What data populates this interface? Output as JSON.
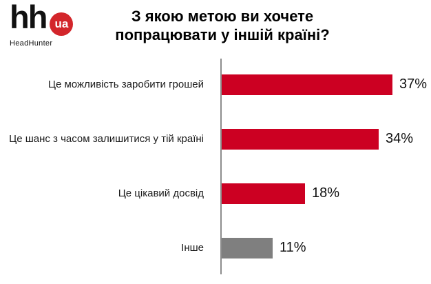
{
  "logo": {
    "hh": "hh",
    "ua": "ua",
    "subtitle": "HeadHunter"
  },
  "title": {
    "line1": "З якою метою ви хочете",
    "line2": "попрацювати у іншій країні?"
  },
  "chart_data": {
    "type": "bar",
    "orientation": "horizontal",
    "title": "З якою метою ви хочете попрацювати у іншій країні?",
    "categories": [
      "Це можливість заробити грошей",
      "Це шанс з часом залишитися у тій країні",
      "Це цікавий досвід",
      "Інше"
    ],
    "values": [
      37,
      34,
      18,
      11
    ],
    "value_labels": [
      "37%",
      "34%",
      "18%",
      "11%"
    ],
    "bar_colors": [
      "#cc0022",
      "#cc0022",
      "#cc0022",
      "#7f7f7f"
    ],
    "xlim": [
      0,
      40
    ],
    "grid": false,
    "legend": false
  },
  "colors": {
    "bar_red": "#cc0022",
    "bar_gray": "#7f7f7f",
    "axis_gray": "#8c8c8c",
    "logo_red": "#d3262b",
    "text": "#111111"
  }
}
